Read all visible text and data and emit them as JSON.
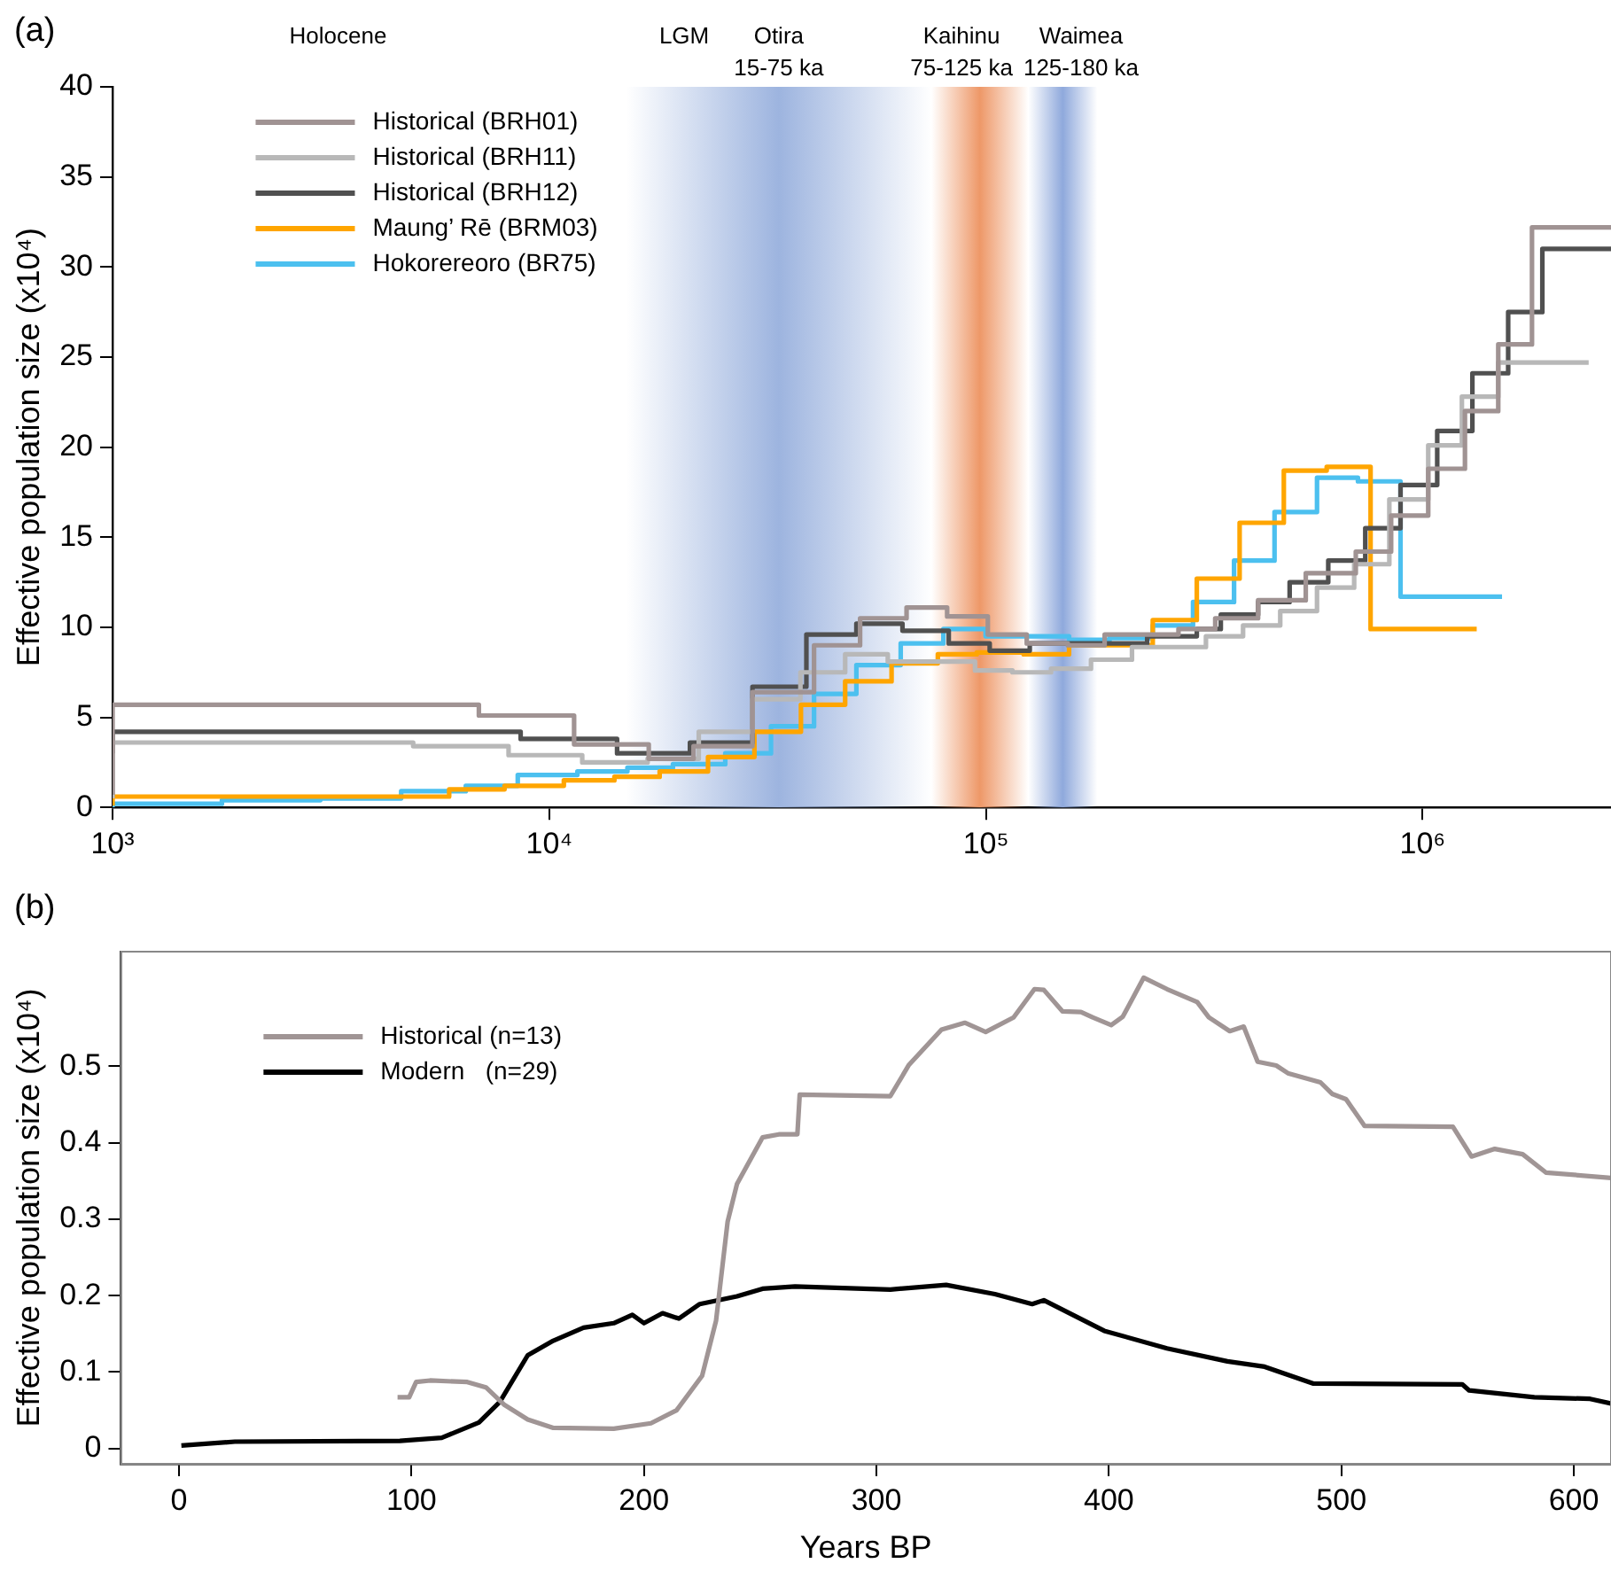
{
  "chart_data": [
    {
      "type": "step",
      "title": "(a)",
      "ylabel": "Effective population size (x10⁴)",
      "log": "x",
      "legend": "top left",
      "xlim": [
        1000,
        2700000
      ],
      "ylim": [
        0,
        40
      ],
      "xticks": [
        {
          "value": 1000,
          "label": "10³"
        },
        {
          "value": 10000,
          "label": "10⁴"
        },
        {
          "value": 100000,
          "label": "10⁵"
        },
        {
          "value": 1000000,
          "label": "10⁶"
        }
      ],
      "yticks": [
        0,
        5,
        10,
        15,
        20,
        25,
        30,
        35,
        40
      ],
      "bands": [
        {
          "axis": "x",
          "from": 15000,
          "to": 75000,
          "label": "Otira\n15-75 ka",
          "color": "#9db4df"
        },
        {
          "axis": "x",
          "from": 75000,
          "to": 125000,
          "label": "Kaihinu\n75-125 ka",
          "color": "#ee9868"
        },
        {
          "axis": "x",
          "from": 125000,
          "to": 180000,
          "label": "Waimea\n125-180 ka",
          "color": "#8fa9dc"
        }
      ],
      "annotations": [
        "Holocene",
        "LGM"
      ],
      "series": [
        {
          "name": "Historical (BRH01)",
          "color": "#a09393",
          "x": [
            1000,
            6900,
            11400,
            16900,
            21400,
            29200,
            40400,
            51500,
            65800,
            81500,
            101000,
            124000,
            154000,
            187000,
            276000,
            335000,
            420000,
            540000,
            703000,
            847000,
            1030000,
            1250000,
            1490000,
            1780000,
            2140000,
            2700000
          ],
          "values": [
            0.7,
            5.7,
            5.1,
            3.5,
            2.7,
            3.4,
            6.4,
            9.0,
            10.5,
            11.1,
            10.6,
            9.6,
            9.1,
            9.0,
            9.6,
            9.9,
            10.5,
            11.5,
            13.0,
            14.2,
            16.2,
            18.8,
            22.0,
            25.7,
            32.2,
            32.2
          ]
        },
        {
          "name": "Historical (BRH11)",
          "color": "#b8b8b8",
          "x": [
            1000,
            4880,
            8070,
            11900,
            16800,
            22000,
            29200,
            37600,
            47600,
            59600,
            94400,
            115000,
            141000,
            174000,
            216000,
            319000,
            388000,
            472000,
            573000,
            697000,
            839000,
            1030000,
            1230000,
            1490000,
            1810000,
            2400000
          ],
          "values": [
            0.5,
            3.6,
            3.4,
            2.9,
            2.5,
            2.7,
            4.2,
            6.0,
            7.5,
            8.5,
            8.1,
            7.6,
            7.5,
            7.7,
            8.2,
            8.9,
            9.5,
            10.1,
            10.9,
            12.2,
            13.5,
            17.1,
            20.1,
            22.8,
            24.7,
            24.7
          ]
        },
        {
          "name": "Historical (BRH12)",
          "color": "#505050",
          "x": [
            1000,
            8600,
            14300,
            21000,
            29200,
            38800,
            50500,
            64400,
            82200,
            102000,
            126000,
            234000,
            304000,
            345000,
            420000,
            496000,
            608000,
            739000,
            890000,
            1080000,
            1300000,
            1570000,
            1880000,
            2270000,
            2700000
          ],
          "values": [
            3.0,
            4.2,
            3.8,
            3.0,
            3.6,
            6.7,
            9.6,
            10.2,
            9.8,
            9.1,
            8.7,
            9.1,
            9.5,
            9.9,
            10.7,
            11.4,
            12.5,
            13.7,
            15.5,
            17.9,
            20.9,
            24.1,
            27.5,
            31.0,
            31.0
          ]
        },
        {
          "name": "Maung’ Rē (BRM03)",
          "color": "#ffa500",
          "x": [
            1000,
            5900,
            7900,
            10800,
            14100,
            17900,
            23100,
            29500,
            37700,
            47600,
            60800,
            77600,
            95300,
            122000,
            155000,
            241000,
            304000,
            381000,
            481000,
            603000,
            760000,
            953000,
            1330000
          ],
          "values": [
            0.1,
            0.6,
            1.0,
            1.2,
            1.5,
            1.7,
            2.0,
            2.8,
            4.2,
            5.7,
            7.0,
            8.0,
            8.5,
            8.6,
            8.5,
            9.0,
            10.4,
            12.7,
            15.8,
            18.7,
            18.9,
            9.9,
            9.9
          ]
        },
        {
          "name": "Hokorereoro (BR75)",
          "color": "#4cc0ef",
          "x": [
            1000,
            1780,
            2990,
            4580,
            6440,
            8470,
            11600,
            15100,
            19200,
            25300,
            32200,
            40400,
            50500,
            63800,
            79900,
            99800,
            155000,
            192000,
            241000,
            298000,
            370000,
            458000,
            573000,
            711000,
            890000,
            1090000,
            1520000
          ],
          "values": [
            0.0,
            0.2,
            0.4,
            0.5,
            0.9,
            1.2,
            1.8,
            2.0,
            2.2,
            2.4,
            3.0,
            4.5,
            6.3,
            7.9,
            9.1,
            9.9,
            9.5,
            9.3,
            9.4,
            10.1,
            11.4,
            13.7,
            16.4,
            18.3,
            18.1,
            11.7,
            11.7
          ]
        }
      ]
    },
    {
      "type": "line",
      "title": "(b)",
      "xlabel": "Years BP",
      "ylabel": "Effective population size (x10⁴)",
      "legend": "top left",
      "xlim": [
        -25,
        616
      ],
      "ylim": [
        -0.02,
        0.65
      ],
      "xticks": [
        0,
        100,
        200,
        300,
        400,
        500,
        600
      ],
      "yticks": [
        0,
        0.1,
        0.2,
        0.3,
        0.4,
        0.5
      ],
      "series": [
        {
          "name": "Historical (n=13)",
          "color": "#a09595",
          "x": [
            94,
            99,
            102,
            108,
            124,
            132,
            140,
            150,
            161,
            187,
            203,
            214,
            225,
            231,
            236,
            240,
            251,
            258,
            266,
            267,
            306,
            314,
            328,
            338,
            347,
            359,
            368,
            372,
            380,
            388,
            393,
            401,
            406,
            415,
            425,
            438,
            443,
            452,
            458,
            464,
            472,
            477,
            491,
            496,
            502,
            510,
            548,
            556,
            566,
            578,
            588,
            616
          ],
          "values": [
            0.067,
            0.067,
            0.087,
            0.089,
            0.087,
            0.08,
            0.057,
            0.038,
            0.027,
            0.026,
            0.033,
            0.05,
            0.095,
            0.167,
            0.297,
            0.346,
            0.407,
            0.411,
            0.411,
            0.463,
            0.461,
            0.502,
            0.548,
            0.557,
            0.545,
            0.564,
            0.601,
            0.6,
            0.572,
            0.571,
            0.564,
            0.554,
            0.565,
            0.616,
            0.601,
            0.584,
            0.564,
            0.546,
            0.552,
            0.506,
            0.501,
            0.491,
            0.479,
            0.464,
            0.457,
            0.422,
            0.421,
            0.382,
            0.392,
            0.385,
            0.361,
            0.354
          ]
        },
        {
          "name": "Modern   (n=29)",
          "color": "#000000",
          "x": [
            1,
            24,
            95,
            113,
            129,
            138,
            150,
            161,
            174,
            187,
            195,
            200,
            208,
            215,
            224,
            240,
            251,
            265,
            306,
            330,
            351,
            367,
            372,
            398,
            425,
            451,
            467,
            488,
            552,
            555,
            583,
            607,
            616
          ],
          "values": [
            0.004,
            0.009,
            0.01,
            0.014,
            0.034,
            0.061,
            0.122,
            0.141,
            0.158,
            0.164,
            0.175,
            0.164,
            0.177,
            0.17,
            0.189,
            0.199,
            0.209,
            0.212,
            0.208,
            0.214,
            0.202,
            0.189,
            0.194,
            0.154,
            0.131,
            0.114,
            0.107,
            0.085,
            0.084,
            0.076,
            0.067,
            0.065,
            0.059
          ]
        }
      ]
    }
  ]
}
